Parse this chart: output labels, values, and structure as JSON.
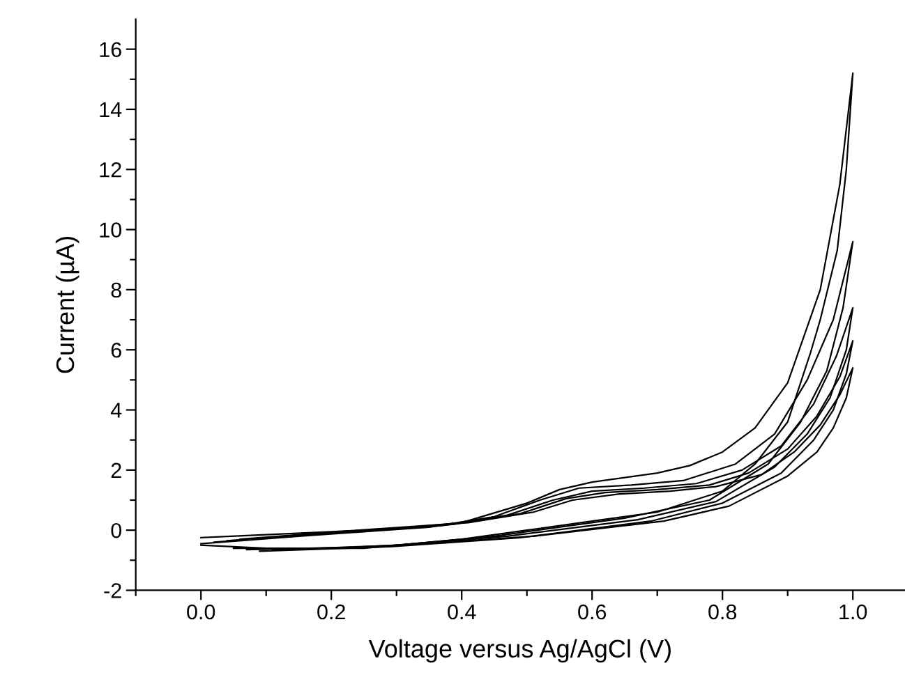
{
  "chart_data": {
    "type": "line",
    "xlabel": "Voltage versus Ag/AgCl (V)",
    "ylabel": "Current (µA)",
    "xlim": [
      -0.1,
      1.08
    ],
    "ylim": [
      -2,
      17
    ],
    "xticks": [
      {
        "value": -0.1,
        "label": null
      },
      {
        "value": 0.0,
        "label": "0.0"
      },
      {
        "value": 0.1,
        "label": null
      },
      {
        "value": 0.2,
        "label": "0.2"
      },
      {
        "value": 0.3,
        "label": null
      },
      {
        "value": 0.4,
        "label": "0.4"
      },
      {
        "value": 0.5,
        "label": null
      },
      {
        "value": 0.6,
        "label": "0.6"
      },
      {
        "value": 0.7,
        "label": null
      },
      {
        "value": 0.8,
        "label": "0.8"
      },
      {
        "value": 0.9,
        "label": null
      },
      {
        "value": 1.0,
        "label": "1.0"
      }
    ],
    "yticks": [
      -2,
      {
        "value": -1,
        "label": null
      },
      0,
      {
        "value": 1,
        "label": null
      },
      2,
      {
        "value": 3,
        "label": null
      },
      4,
      {
        "value": 5,
        "label": null
      },
      6,
      {
        "value": 7,
        "label": null
      },
      8,
      {
        "value": 9,
        "label": null
      },
      10,
      {
        "value": 11,
        "label": null
      },
      12,
      {
        "value": 13,
        "label": null
      },
      14,
      {
        "value": 15,
        "label": null
      },
      16
    ],
    "grid": false,
    "legend": false,
    "marker": "none",
    "line_style": "solid",
    "series": [
      {
        "color": "#000000",
        "x": [
          0.0,
          0.1,
          0.2,
          0.3,
          0.4,
          0.5,
          0.55,
          0.6,
          0.65,
          0.7,
          0.75,
          0.8,
          0.85,
          0.9,
          0.95,
          0.98,
          1.0,
          0.99,
          0.976,
          0.95,
          0.935,
          0.9,
          0.85,
          0.8,
          0.7,
          0.6,
          0.5,
          0.4,
          0.3,
          0.2,
          0.1,
          0.0
        ],
        "values": [
          -0.25,
          -0.15,
          -0.05,
          0.05,
          0.25,
          0.9,
          1.35,
          1.6,
          1.75,
          1.9,
          2.15,
          2.6,
          3.4,
          4.9,
          8.0,
          11.5,
          15.2,
          12.0,
          9.3,
          7.0,
          5.9,
          3.6,
          2.2,
          1.3,
          0.6,
          0.3,
          0.0,
          -0.3,
          -0.5,
          -0.6,
          -0.6,
          -0.5
        ]
      },
      {
        "color": "#000000",
        "x": [
          0.0,
          0.15,
          0.35,
          0.45,
          0.52,
          0.58,
          0.66,
          0.74,
          0.82,
          0.88,
          0.93,
          0.97,
          1.0,
          0.985,
          0.96,
          0.92,
          0.87,
          0.78,
          0.65,
          0.45,
          0.25,
          0.05
        ],
        "values": [
          -0.45,
          -0.2,
          0.1,
          0.45,
          1.0,
          1.4,
          1.5,
          1.65,
          2.2,
          3.2,
          5.0,
          7.0,
          9.6,
          7.4,
          5.3,
          3.6,
          2.2,
          1.0,
          0.4,
          -0.2,
          -0.6,
          -0.6
        ]
      },
      {
        "color": "#000000",
        "x": [
          0.02,
          0.17,
          0.37,
          0.47,
          0.54,
          0.6,
          0.68,
          0.76,
          0.83,
          0.89,
          0.94,
          0.975,
          1.0,
          0.99,
          0.965,
          0.93,
          0.88,
          0.79,
          0.67,
          0.47,
          0.27,
          0.07
        ],
        "values": [
          -0.4,
          -0.15,
          0.15,
          0.5,
          1.0,
          1.3,
          1.4,
          1.55,
          2.0,
          2.8,
          4.2,
          5.8,
          7.4,
          6.0,
          4.4,
          3.2,
          2.1,
          0.95,
          0.35,
          -0.2,
          -0.55,
          -0.65
        ]
      },
      {
        "color": "#000000",
        "x": [
          0.04,
          0.19,
          0.39,
          0.49,
          0.56,
          0.62,
          0.7,
          0.78,
          0.84,
          0.9,
          0.945,
          0.98,
          1.0,
          0.99,
          0.97,
          0.94,
          0.89,
          0.8,
          0.69,
          0.49,
          0.29,
          0.09
        ],
        "values": [
          -0.35,
          -0.1,
          0.2,
          0.55,
          1.05,
          1.25,
          1.35,
          1.5,
          1.9,
          2.7,
          3.8,
          5.1,
          6.3,
          5.2,
          4.0,
          3.0,
          1.9,
          0.9,
          0.3,
          -0.25,
          -0.55,
          -0.7
        ]
      },
      {
        "color": "#000000",
        "x": [
          0.06,
          0.21,
          0.41,
          0.51,
          0.57,
          0.64,
          0.72,
          0.79,
          0.86,
          0.91,
          0.95,
          0.98,
          1.0,
          0.99,
          0.97,
          0.945,
          0.9,
          0.81,
          0.71,
          0.51,
          0.31,
          0.11
        ],
        "values": [
          -0.3,
          -0.05,
          0.25,
          0.6,
          1.0,
          1.2,
          1.3,
          1.45,
          1.85,
          2.6,
          3.5,
          4.5,
          5.4,
          4.4,
          3.4,
          2.6,
          1.8,
          0.8,
          0.3,
          -0.2,
          -0.5,
          -0.65
        ]
      }
    ]
  }
}
